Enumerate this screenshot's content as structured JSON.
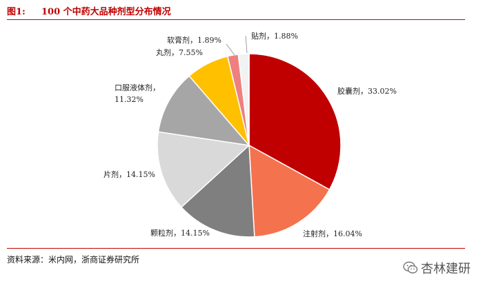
{
  "header": {
    "figure_no": "图1:",
    "title": "100 个中药大品种剂型分布情况"
  },
  "source": "资料来源：米内网，浙商证券研究所",
  "watermark": {
    "text": "杏林建研",
    "icon": "wechat-icon"
  },
  "chart_data": {
    "type": "pie",
    "title": "100 个中药大品种剂型分布情况",
    "slices": [
      {
        "label": "胶囊剂",
        "value": 33.02,
        "display": "33.02%",
        "color": "#c00000"
      },
      {
        "label": "注射剂",
        "value": 16.04,
        "display": "16.04%",
        "color": "#f4724e"
      },
      {
        "label": "颗粒剂",
        "value": 14.15,
        "display": "14.15%",
        "color": "#7f7f7f"
      },
      {
        "label": "片剂",
        "value": 14.15,
        "display": "14.15%",
        "color": "#d9d9d9"
      },
      {
        "label": "口服液体剂",
        "value": 11.32,
        "display": "11.32%",
        "color": "#a6a6a6"
      },
      {
        "label": "丸剂",
        "value": 7.55,
        "display": "7.55%",
        "color": "#ffc000"
      },
      {
        "label": "软膏剂",
        "value": 1.89,
        "display": "1.89%",
        "color": "#ee8080"
      },
      {
        "label": "贴剂",
        "value": 1.88,
        "display": "1.88%",
        "color": "#f2f2f2"
      }
    ]
  }
}
